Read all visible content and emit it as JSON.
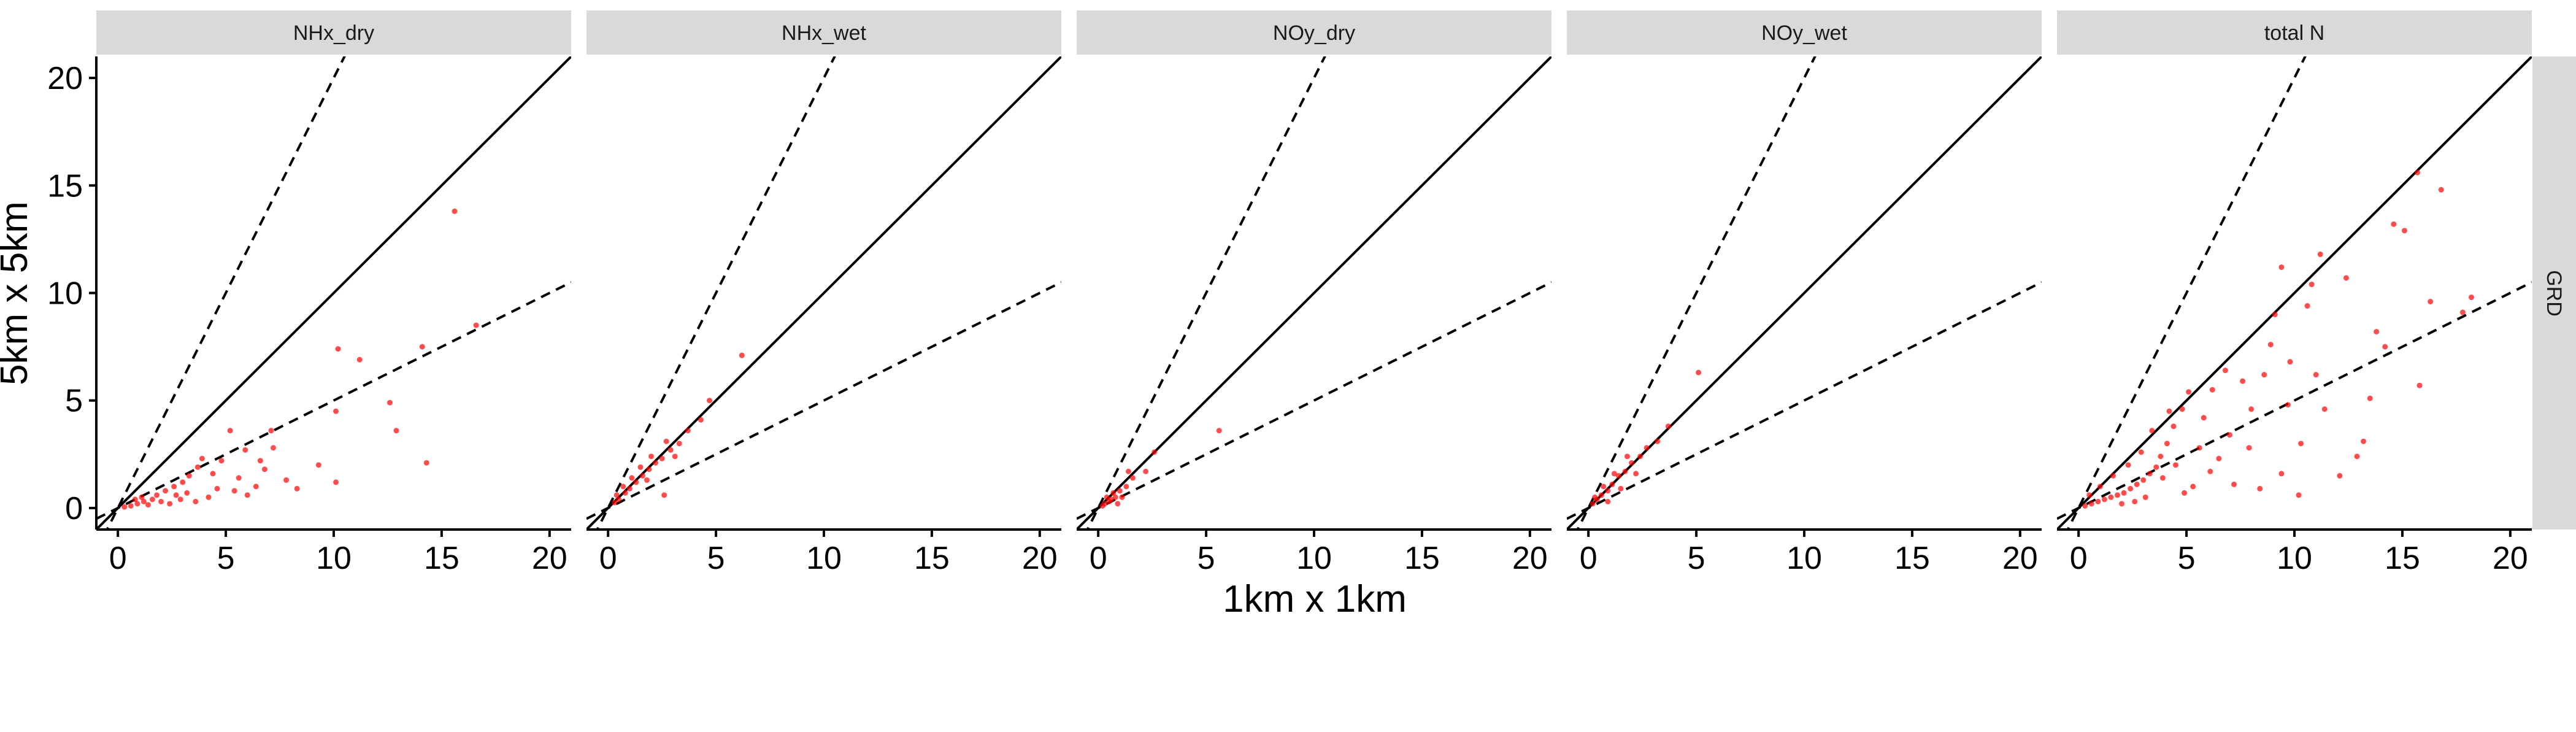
{
  "chart_data": {
    "type": "scatter",
    "xlabel": "1km x 1km",
    "ylabel": "5km x 5km",
    "facet_row_label": "GRD",
    "xlim": [
      -1,
      21
    ],
    "ylim": [
      -1,
      21
    ],
    "x_ticks": [
      0,
      5,
      10,
      15,
      20
    ],
    "y_ticks": [
      0,
      5,
      10,
      15,
      20
    ],
    "grid": false,
    "reference_lines": [
      {
        "name": "1:1",
        "slope": 1,
        "style": "solid"
      },
      {
        "name": "2:1",
        "slope": 2,
        "style": "dashed"
      },
      {
        "name": "1:2",
        "slope": 0.5,
        "style": "dashed"
      }
    ],
    "point_color": "#ff0000",
    "panels": [
      {
        "title": "NHx_dry",
        "points": [
          [
            15.6,
            13.8
          ],
          [
            16.6,
            8.5
          ],
          [
            14.1,
            7.5
          ],
          [
            14.3,
            2.1
          ],
          [
            10.2,
            7.4
          ],
          [
            11.2,
            6.9
          ],
          [
            12.6,
            4.9
          ],
          [
            12.9,
            3.6
          ],
          [
            10.1,
            4.5
          ],
          [
            9.3,
            2.0
          ],
          [
            10.1,
            1.2
          ],
          [
            7.1,
            3.6
          ],
          [
            7.2,
            2.8
          ],
          [
            6.8,
            1.8
          ],
          [
            6.4,
            1.0
          ],
          [
            5.2,
            3.6
          ],
          [
            5.9,
            2.7
          ],
          [
            4.8,
            2.2
          ],
          [
            4.4,
            1.6
          ],
          [
            3.9,
            2.3
          ],
          [
            3.7,
            1.9
          ],
          [
            3.3,
            1.5
          ],
          [
            3.0,
            1.2
          ],
          [
            2.6,
            1.0
          ],
          [
            2.2,
            0.8
          ],
          [
            1.8,
            0.6
          ],
          [
            1.6,
            0.4
          ],
          [
            1.2,
            0.3
          ],
          [
            0.9,
            0.2
          ],
          [
            0.6,
            0.1
          ],
          [
            0.3,
            0.05
          ],
          [
            4.6,
            0.9
          ],
          [
            5.6,
            1.4
          ],
          [
            6.0,
            0.6
          ],
          [
            4.2,
            0.5
          ],
          [
            3.6,
            0.3
          ],
          [
            2.9,
            0.4
          ],
          [
            2.4,
            0.2
          ],
          [
            2.0,
            0.3
          ],
          [
            1.4,
            0.15
          ],
          [
            7.8,
            1.3
          ],
          [
            8.3,
            0.9
          ],
          [
            6.6,
            2.2
          ],
          [
            5.4,
            0.8
          ],
          [
            3.2,
            0.7
          ],
          [
            2.7,
            0.6
          ],
          [
            1.1,
            0.5
          ],
          [
            0.8,
            0.4
          ]
        ]
      },
      {
        "title": "NHx_wet",
        "points": [
          [
            6.2,
            7.1
          ],
          [
            4.7,
            5.0
          ],
          [
            4.3,
            4.1
          ],
          [
            3.7,
            3.6
          ],
          [
            3.3,
            3.0
          ],
          [
            2.9,
            2.7
          ],
          [
            2.5,
            2.3
          ],
          [
            2.2,
            2.1
          ],
          [
            1.9,
            1.8
          ],
          [
            1.6,
            1.5
          ],
          [
            1.3,
            1.2
          ],
          [
            1.0,
            0.9
          ],
          [
            0.8,
            0.7
          ],
          [
            0.5,
            0.4
          ],
          [
            0.3,
            0.25
          ],
          [
            2.7,
            3.1
          ],
          [
            2.0,
            2.4
          ],
          [
            1.5,
            1.9
          ],
          [
            1.1,
            1.4
          ],
          [
            0.7,
            1.0
          ],
          [
            0.4,
            0.6
          ],
          [
            2.6,
            0.6
          ],
          [
            3.1,
            2.4
          ],
          [
            1.8,
            1.3
          ]
        ]
      },
      {
        "title": "NOy_dry",
        "points": [
          [
            5.6,
            3.6
          ],
          [
            2.6,
            2.6
          ],
          [
            2.2,
            1.7
          ],
          [
            1.6,
            1.4
          ],
          [
            1.3,
            1.0
          ],
          [
            1.0,
            0.8
          ],
          [
            0.8,
            0.5
          ],
          [
            0.6,
            0.4
          ],
          [
            0.5,
            0.3
          ],
          [
            0.3,
            0.2
          ],
          [
            0.2,
            0.1
          ],
          [
            1.1,
            0.5
          ],
          [
            0.9,
            0.2
          ],
          [
            0.7,
            0.7
          ],
          [
            0.4,
            0.5
          ],
          [
            1.4,
            1.7
          ]
        ]
      },
      {
        "title": "NOy_wet",
        "points": [
          [
            5.1,
            6.3
          ],
          [
            3.7,
            3.8
          ],
          [
            3.2,
            3.1
          ],
          [
            2.7,
            2.8
          ],
          [
            2.4,
            2.4
          ],
          [
            2.0,
            2.1
          ],
          [
            1.7,
            1.7
          ],
          [
            1.4,
            1.5
          ],
          [
            1.1,
            1.1
          ],
          [
            0.9,
            0.8
          ],
          [
            0.6,
            0.6
          ],
          [
            0.4,
            0.4
          ],
          [
            0.2,
            0.2
          ],
          [
            1.8,
            2.4
          ],
          [
            1.2,
            1.6
          ],
          [
            0.7,
            1.0
          ],
          [
            0.9,
            0.3
          ],
          [
            1.5,
            0.9
          ],
          [
            2.2,
            1.6
          ],
          [
            0.3,
            0.5
          ]
        ]
      },
      {
        "title": "total N",
        "points": [
          [
            15.7,
            15.6
          ],
          [
            16.8,
            14.8
          ],
          [
            14.6,
            13.2
          ],
          [
            15.1,
            12.9
          ],
          [
            17.8,
            9.1
          ],
          [
            18.2,
            9.8
          ],
          [
            16.3,
            9.6
          ],
          [
            11.2,
            11.8
          ],
          [
            12.4,
            10.7
          ],
          [
            10.8,
            10.4
          ],
          [
            9.4,
            11.2
          ],
          [
            9.1,
            9.0
          ],
          [
            10.6,
            9.4
          ],
          [
            8.9,
            7.6
          ],
          [
            14.2,
            7.5
          ],
          [
            15.8,
            5.7
          ],
          [
            13.5,
            5.1
          ],
          [
            13.2,
            3.1
          ],
          [
            12.9,
            2.4
          ],
          [
            10.3,
            3.0
          ],
          [
            11.4,
            4.6
          ],
          [
            9.4,
            1.6
          ],
          [
            8.4,
            0.9
          ],
          [
            10.2,
            0.6
          ],
          [
            8.0,
            4.6
          ],
          [
            7.6,
            5.9
          ],
          [
            6.8,
            6.4
          ],
          [
            6.2,
            5.5
          ],
          [
            5.8,
            4.2
          ],
          [
            5.6,
            2.8
          ],
          [
            6.1,
            1.7
          ],
          [
            7.2,
            1.1
          ],
          [
            5.1,
            5.4
          ],
          [
            4.8,
            4.6
          ],
          [
            4.4,
            3.8
          ],
          [
            4.1,
            3.0
          ],
          [
            3.8,
            2.4
          ],
          [
            3.6,
            1.9
          ],
          [
            3.3,
            1.6
          ],
          [
            3.0,
            1.3
          ],
          [
            2.7,
            1.1
          ],
          [
            2.4,
            0.9
          ],
          [
            2.1,
            0.7
          ],
          [
            1.8,
            0.6
          ],
          [
            1.5,
            0.5
          ],
          [
            1.2,
            0.4
          ],
          [
            0.9,
            0.3
          ],
          [
            0.6,
            0.2
          ],
          [
            0.3,
            0.1
          ],
          [
            4.5,
            2.0
          ],
          [
            3.9,
            1.4
          ],
          [
            5.3,
            1.0
          ],
          [
            4.9,
            0.7
          ],
          [
            3.1,
            0.5
          ],
          [
            2.6,
            0.3
          ],
          [
            2.0,
            0.2
          ],
          [
            7.9,
            2.8
          ],
          [
            7.0,
            3.4
          ],
          [
            6.5,
            2.3
          ],
          [
            8.6,
            6.2
          ],
          [
            9.7,
            4.8
          ],
          [
            12.1,
            1.5
          ],
          [
            4.2,
            4.5
          ],
          [
            3.4,
            3.6
          ],
          [
            2.9,
            2.6
          ],
          [
            2.3,
            2.0
          ],
          [
            1.6,
            1.5
          ],
          [
            1.0,
            1.0
          ],
          [
            0.5,
            0.6
          ],
          [
            11.0,
            6.2
          ],
          [
            13.8,
            8.2
          ],
          [
            9.8,
            6.8
          ]
        ]
      }
    ]
  }
}
